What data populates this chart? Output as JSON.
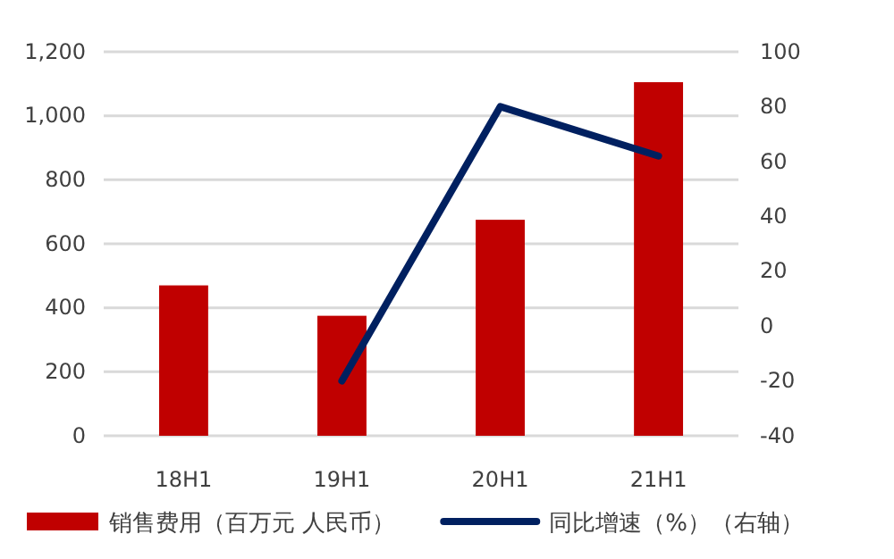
{
  "chart_data": {
    "type": "bar",
    "categories": [
      "18H1",
      "19H1",
      "20H1",
      "21H1"
    ],
    "series": [
      {
        "name": "销售费用（百万元 人民币）",
        "color": "#c00000",
        "values": [
          470,
          375,
          675,
          1105
        ]
      },
      {
        "name": "同比增速（%）（右轴）",
        "type": "line",
        "axis": "y2",
        "color": "#002060",
        "values": [
          null,
          -20,
          80,
          62
        ]
      }
    ],
    "ylim": [
      0,
      1200
    ],
    "yticks": [
      0,
      200,
      400,
      600,
      800,
      {
        "value": 1000,
        "label": "1,000"
      },
      {
        "value": 1200,
        "label": "1,200"
      }
    ],
    "y2lim": [
      -40,
      100
    ],
    "y2ticks": [
      -40,
      -20,
      0,
      20,
      40,
      60,
      80,
      100
    ],
    "grid": "y",
    "legend": "bottom"
  }
}
